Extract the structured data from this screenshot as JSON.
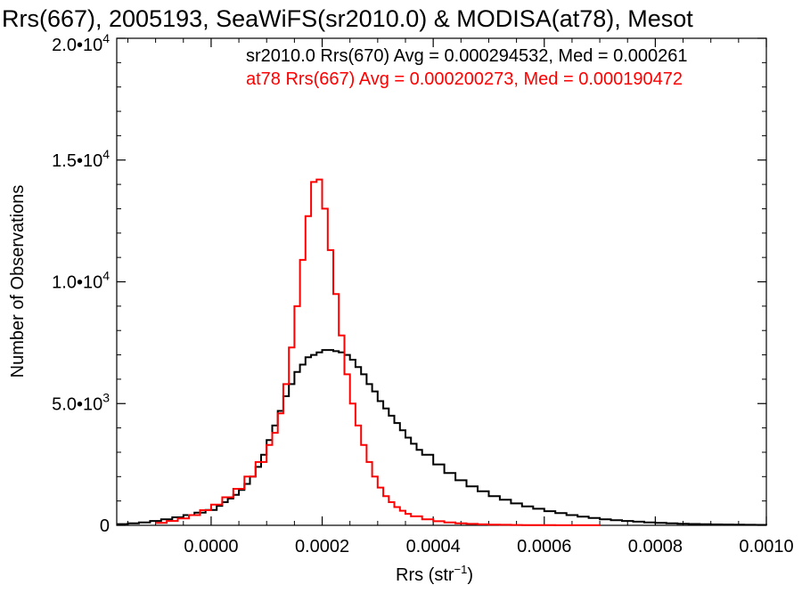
{
  "chart_data": {
    "type": "histogram-step",
    "title": "Rrs(667), 2005193, SeaWiFS(sr2010.0) & MODISA(at78), Mesot",
    "xlabel": "Rrs (str",
    "xlabel_sup": "−1",
    "xlabel_close": ")",
    "ylabel": "Number of Observations",
    "xlim": [
      -0.00017,
      0.001
    ],
    "ylim": [
      0,
      20000
    ],
    "x_ticks": [
      {
        "value": 0.0,
        "label": "0.0000"
      },
      {
        "value": 0.0002,
        "label": "0.0002"
      },
      {
        "value": 0.0004,
        "label": "0.0004"
      },
      {
        "value": 0.0006,
        "label": "0.0006"
      },
      {
        "value": 0.0008,
        "label": "0.0008"
      },
      {
        "value": 0.001,
        "label": "0.0010"
      }
    ],
    "y_ticks": [
      {
        "value": 0,
        "base": "0",
        "exp": ""
      },
      {
        "value": 5000,
        "base": "5.0•10",
        "exp": "3"
      },
      {
        "value": 10000,
        "base": "1.0•10",
        "exp": "4"
      },
      {
        "value": 15000,
        "base": "1.5•10",
        "exp": "4"
      },
      {
        "value": 20000,
        "base": "2.0•10",
        "exp": "4"
      }
    ],
    "legend": [
      {
        "text": "sr2010.0 Rrs(670) Avg = 0.000294532, Med = 0.000261",
        "color": "#000000"
      },
      {
        "text": "at78 Rrs(667) Avg = 0.000200273, Med = 0.000190472",
        "color": "#ff0000"
      }
    ],
    "legend_placement": "top-right",
    "series": [
      {
        "color": "#000000",
        "x": [
          -0.00017,
          -0.00015,
          -0.00013,
          -0.00011,
          -9e-05,
          -7e-05,
          -5e-05,
          -3e-05,
          -1e-05,
          1e-05,
          2e-05,
          3e-05,
          4e-05,
          5e-05,
          6e-05,
          7e-05,
          8e-05,
          9e-05,
          0.0001,
          0.00011,
          0.00012,
          0.00013,
          0.00014,
          0.00015,
          0.00016,
          0.00017,
          0.00018,
          0.00019,
          0.0002,
          0.00021,
          0.00022,
          0.00023,
          0.00024,
          0.00025,
          0.00026,
          0.00027,
          0.00028,
          0.00029,
          0.0003,
          0.00031,
          0.00032,
          0.00033,
          0.00034,
          0.00035,
          0.00036,
          0.00037,
          0.00038,
          0.0004,
          0.00042,
          0.00044,
          0.00046,
          0.00048,
          0.0005,
          0.00052,
          0.00054,
          0.00056,
          0.00058,
          0.0006,
          0.00062,
          0.00064,
          0.00066,
          0.00068,
          0.0007,
          0.00072,
          0.00074,
          0.00076,
          0.00078,
          0.0008,
          0.00082,
          0.00084,
          0.00086,
          0.00088,
          0.0009,
          0.00092,
          0.00094,
          0.00096,
          0.00098,
          0.001
        ],
        "y": [
          50,
          80,
          120,
          180,
          250,
          330,
          420,
          520,
          630,
          800,
          950,
          1100,
          1250,
          1450,
          1700,
          2000,
          2400,
          2900,
          3500,
          4100,
          4700,
          5300,
          5800,
          6300,
          6600,
          6900,
          7000,
          7100,
          7200,
          7200,
          7150,
          7100,
          7000,
          6800,
          6500,
          6200,
          5800,
          5500,
          5100,
          4800,
          4500,
          4200,
          3900,
          3600,
          3350,
          3100,
          2900,
          2500,
          2150,
          1850,
          1600,
          1400,
          1200,
          1050,
          900,
          780,
          680,
          580,
          500,
          420,
          360,
          300,
          250,
          210,
          180,
          150,
          120,
          100,
          80,
          65,
          55,
          45,
          38,
          32,
          27,
          22,
          18,
          15
        ]
      },
      {
        "color": "#ff0000",
        "x": [
          -0.0001,
          -8e-05,
          -6e-05,
          -4e-05,
          -2e-05,
          0.0,
          2e-05,
          4e-05,
          6e-05,
          8e-05,
          0.0001,
          0.00011,
          0.00012,
          0.00013,
          0.00014,
          0.00015,
          0.00016,
          0.00017,
          0.00018,
          0.00019,
          0.0002,
          0.00021,
          0.00022,
          0.00023,
          0.00024,
          0.00025,
          0.00026,
          0.00027,
          0.00028,
          0.00029,
          0.0003,
          0.00031,
          0.00032,
          0.00033,
          0.00034,
          0.00035,
          0.00036,
          0.00038,
          0.0004,
          0.00042,
          0.00044,
          0.00046,
          0.00048,
          0.0005,
          0.00052,
          0.00054,
          0.00056,
          0.00058,
          0.0006,
          0.00062,
          0.00064,
          0.00066,
          0.00068,
          0.0007
        ],
        "y": [
          100,
          180,
          280,
          420,
          620,
          850,
          1150,
          1500,
          2000,
          2600,
          3300,
          3800,
          4600,
          5800,
          7300,
          9000,
          10900,
          12700,
          14100,
          14200,
          13000,
          11300,
          9500,
          7800,
          6200,
          5000,
          4100,
          3300,
          2600,
          2000,
          1550,
          1200,
          950,
          750,
          600,
          470,
          370,
          250,
          170,
          120,
          85,
          60,
          42,
          30,
          22,
          16,
          12,
          9,
          7,
          5,
          4,
          3,
          2,
          1
        ]
      }
    ]
  }
}
